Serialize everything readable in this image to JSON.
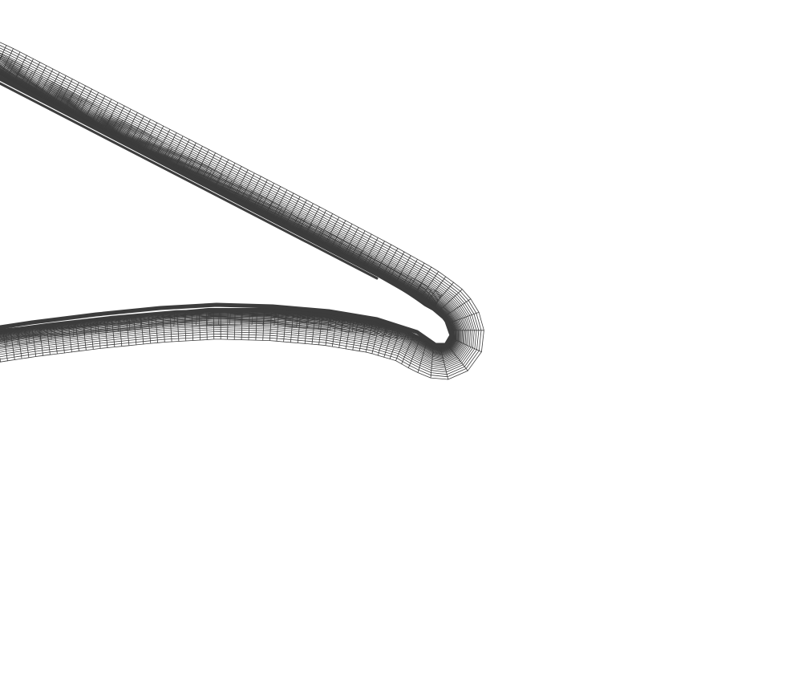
{
  "figure": {
    "kind": "structured-mesh",
    "bodies": [
      "slat",
      "main-element"
    ],
    "colors": {
      "background": "#ffffff",
      "grid_line": "#3c3c3c",
      "body_fill": "#ffffff"
    }
  }
}
